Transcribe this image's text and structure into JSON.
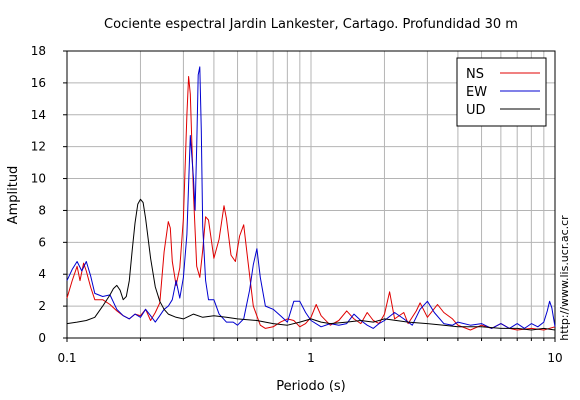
{
  "chart_data": {
    "type": "line",
    "title": "Cociente espectral Jardin Lankester, Cartago. Profundidad 30 m",
    "xlabel": "Periodo (s)",
    "ylabel": "Amplitud",
    "x_scale": "log",
    "xlim": [
      0.1,
      10
    ],
    "ylim": [
      0,
      18
    ],
    "x_ticks": [
      {
        "value": 0.1,
        "label": "0.1"
      },
      {
        "value": 1,
        "label": "1"
      },
      {
        "value": 10,
        "label": "10"
      }
    ],
    "y_ticks": [
      0,
      2,
      4,
      6,
      8,
      10,
      12,
      14,
      16,
      18
    ],
    "grid": true,
    "legend_position": "top-right",
    "side_label": "http://www.lis.ucr.ac.cr",
    "series": [
      {
        "name": "NS",
        "color": "#e00000",
        "points": [
          [
            0.1,
            2.5
          ],
          [
            0.105,
            3.6
          ],
          [
            0.11,
            4.5
          ],
          [
            0.113,
            3.6
          ],
          [
            0.117,
            4.7
          ],
          [
            0.12,
            4.2
          ],
          [
            0.125,
            3.2
          ],
          [
            0.13,
            2.4
          ],
          [
            0.14,
            2.4
          ],
          [
            0.15,
            2.1
          ],
          [
            0.16,
            1.7
          ],
          [
            0.17,
            1.4
          ],
          [
            0.18,
            1.2
          ],
          [
            0.19,
            1.5
          ],
          [
            0.2,
            1.4
          ],
          [
            0.21,
            1.8
          ],
          [
            0.22,
            1.1
          ],
          [
            0.23,
            1.6
          ],
          [
            0.24,
            2.2
          ],
          [
            0.25,
            5.4
          ],
          [
            0.26,
            7.3
          ],
          [
            0.265,
            6.9
          ],
          [
            0.27,
            4.8
          ],
          [
            0.28,
            3.3
          ],
          [
            0.29,
            4.4
          ],
          [
            0.3,
            7.5
          ],
          [
            0.31,
            14
          ],
          [
            0.315,
            16.4
          ],
          [
            0.32,
            15.3
          ],
          [
            0.33,
            9
          ],
          [
            0.34,
            4.5
          ],
          [
            0.35,
            3.8
          ],
          [
            0.36,
            5.5
          ],
          [
            0.37,
            7.6
          ],
          [
            0.38,
            7.4
          ],
          [
            0.39,
            6.2
          ],
          [
            0.4,
            5
          ],
          [
            0.42,
            6.2
          ],
          [
            0.44,
            8.3
          ],
          [
            0.45,
            7.5
          ],
          [
            0.47,
            5.2
          ],
          [
            0.49,
            4.8
          ],
          [
            0.51,
            6.4
          ],
          [
            0.53,
            7.1
          ],
          [
            0.55,
            5
          ],
          [
            0.58,
            2
          ],
          [
            0.62,
            0.8
          ],
          [
            0.65,
            0.6
          ],
          [
            0.7,
            0.7
          ],
          [
            0.75,
            1
          ],
          [
            0.8,
            1.2
          ],
          [
            0.85,
            1.1
          ],
          [
            0.9,
            0.7
          ],
          [
            0.95,
            0.9
          ],
          [
            1,
            1.3
          ],
          [
            1.05,
            2.1
          ],
          [
            1.1,
            1.4
          ],
          [
            1.2,
            0.8
          ],
          [
            1.3,
            1.1
          ],
          [
            1.4,
            1.7
          ],
          [
            1.5,
            1.2
          ],
          [
            1.6,
            0.9
          ],
          [
            1.7,
            1.6
          ],
          [
            1.8,
            1.1
          ],
          [
            1.9,
            0.9
          ],
          [
            2,
            1.5
          ],
          [
            2.1,
            2.9
          ],
          [
            2.2,
            1.2
          ],
          [
            2.4,
            1.6
          ],
          [
            2.5,
            0.9
          ],
          [
            2.7,
            1.7
          ],
          [
            2.8,
            2.2
          ],
          [
            3,
            1.3
          ],
          [
            3.3,
            2.1
          ],
          [
            3.5,
            1.6
          ],
          [
            3.8,
            1.2
          ],
          [
            4,
            0.8
          ],
          [
            4.5,
            0.5
          ],
          [
            5,
            0.8
          ],
          [
            5.5,
            0.6
          ],
          [
            6,
            0.9
          ],
          [
            6.5,
            0.6
          ],
          [
            7,
            0.5
          ],
          [
            8,
            0.6
          ],
          [
            9,
            0.5
          ],
          [
            10,
            0.7
          ]
        ]
      },
      {
        "name": "EW",
        "color": "#0000d0",
        "points": [
          [
            0.1,
            3.6
          ],
          [
            0.105,
            4.3
          ],
          [
            0.11,
            4.8
          ],
          [
            0.115,
            4.2
          ],
          [
            0.12,
            4.8
          ],
          [
            0.125,
            3.9
          ],
          [
            0.13,
            2.8
          ],
          [
            0.14,
            2.6
          ],
          [
            0.15,
            2.7
          ],
          [
            0.16,
            1.8
          ],
          [
            0.17,
            1.4
          ],
          [
            0.18,
            1.2
          ],
          [
            0.19,
            1.5
          ],
          [
            0.2,
            1.3
          ],
          [
            0.21,
            1.8
          ],
          [
            0.22,
            1.4
          ],
          [
            0.23,
            1
          ],
          [
            0.24,
            1.4
          ],
          [
            0.25,
            1.8
          ],
          [
            0.26,
            2
          ],
          [
            0.27,
            2.4
          ],
          [
            0.28,
            3.6
          ],
          [
            0.29,
            2.5
          ],
          [
            0.3,
            3.8
          ],
          [
            0.31,
            6.5
          ],
          [
            0.32,
            12.7
          ],
          [
            0.33,
            10
          ],
          [
            0.335,
            8
          ],
          [
            0.34,
            12
          ],
          [
            0.345,
            16.5
          ],
          [
            0.35,
            17
          ],
          [
            0.355,
            13
          ],
          [
            0.36,
            7
          ],
          [
            0.37,
            3.6
          ],
          [
            0.38,
            2.4
          ],
          [
            0.4,
            2.4
          ],
          [
            0.42,
            1.5
          ],
          [
            0.45,
            1
          ],
          [
            0.48,
            1
          ],
          [
            0.5,
            0.8
          ],
          [
            0.53,
            1.2
          ],
          [
            0.56,
            3
          ],
          [
            0.58,
            4.6
          ],
          [
            0.6,
            5.6
          ],
          [
            0.62,
            3.8
          ],
          [
            0.65,
            2
          ],
          [
            0.7,
            1.8
          ],
          [
            0.75,
            1.4
          ],
          [
            0.8,
            1
          ],
          [
            0.85,
            2.3
          ],
          [
            0.9,
            2.3
          ],
          [
            0.95,
            1.6
          ],
          [
            1,
            1.1
          ],
          [
            1.1,
            0.7
          ],
          [
            1.2,
            0.9
          ],
          [
            1.3,
            0.8
          ],
          [
            1.4,
            0.9
          ],
          [
            1.5,
            1.5
          ],
          [
            1.6,
            1.1
          ],
          [
            1.7,
            0.8
          ],
          [
            1.8,
            0.6
          ],
          [
            1.9,
            0.9
          ],
          [
            2,
            1.1
          ],
          [
            2.2,
            1.6
          ],
          [
            2.4,
            1.2
          ],
          [
            2.6,
            0.8
          ],
          [
            2.8,
            1.8
          ],
          [
            3,
            2.3
          ],
          [
            3.2,
            1.6
          ],
          [
            3.5,
            0.9
          ],
          [
            3.8,
            0.8
          ],
          [
            4,
            1
          ],
          [
            4.5,
            0.8
          ],
          [
            5,
            0.9
          ],
          [
            5.5,
            0.6
          ],
          [
            6,
            0.9
          ],
          [
            6.5,
            0.6
          ],
          [
            7,
            0.9
          ],
          [
            7.5,
            0.6
          ],
          [
            8,
            0.9
          ],
          [
            8.5,
            0.7
          ],
          [
            9,
            1
          ],
          [
            9.3,
            1.7
          ],
          [
            9.5,
            2.3
          ],
          [
            9.7,
            1.9
          ],
          [
            10,
            0.7
          ]
        ]
      },
      {
        "name": "UD",
        "color": "#000000",
        "points": [
          [
            0.1,
            0.9
          ],
          [
            0.11,
            1
          ],
          [
            0.12,
            1.1
          ],
          [
            0.13,
            1.3
          ],
          [
            0.14,
            2
          ],
          [
            0.15,
            2.7
          ],
          [
            0.155,
            3.1
          ],
          [
            0.16,
            3.3
          ],
          [
            0.165,
            3
          ],
          [
            0.17,
            2.4
          ],
          [
            0.175,
            2.6
          ],
          [
            0.18,
            3.6
          ],
          [
            0.185,
            5.5
          ],
          [
            0.19,
            7.2
          ],
          [
            0.195,
            8.4
          ],
          [
            0.2,
            8.7
          ],
          [
            0.205,
            8.5
          ],
          [
            0.21,
            7.5
          ],
          [
            0.22,
            5
          ],
          [
            0.23,
            3.2
          ],
          [
            0.24,
            2.3
          ],
          [
            0.25,
            1.8
          ],
          [
            0.26,
            1.5
          ],
          [
            0.28,
            1.3
          ],
          [
            0.3,
            1.2
          ],
          [
            0.33,
            1.5
          ],
          [
            0.36,
            1.3
          ],
          [
            0.4,
            1.4
          ],
          [
            0.45,
            1.3
          ],
          [
            0.5,
            1.2
          ],
          [
            0.6,
            1.1
          ],
          [
            0.7,
            0.9
          ],
          [
            0.8,
            0.8
          ],
          [
            0.9,
            1
          ],
          [
            1,
            1.2
          ],
          [
            1.1,
            1
          ],
          [
            1.2,
            0.9
          ],
          [
            1.4,
            1
          ],
          [
            1.6,
            1.1
          ],
          [
            1.8,
            1
          ],
          [
            2,
            1.2
          ],
          [
            2.5,
            1
          ],
          [
            3,
            0.9
          ],
          [
            3.5,
            0.8
          ],
          [
            4,
            0.7
          ],
          [
            5,
            0.7
          ],
          [
            6,
            0.6
          ],
          [
            7,
            0.6
          ],
          [
            8,
            0.5
          ],
          [
            9,
            0.6
          ],
          [
            10,
            0.5
          ]
        ]
      }
    ]
  }
}
